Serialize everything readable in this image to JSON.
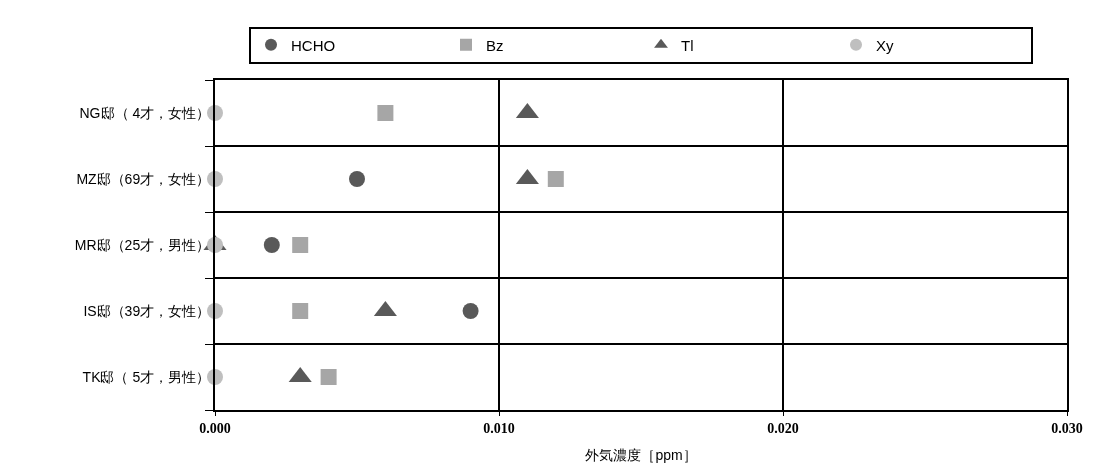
{
  "chart_data": {
    "type": "scatter",
    "orientation": "horizontal",
    "xlabel": "外気濃度［ppm］",
    "categories": [
      "NG邸（ 4才，女性）",
      "MZ邸（69才，女性）",
      "MR邸（25才，男性）",
      "IS邸（39才，女性）",
      "TK邸（ 5才，男性）"
    ],
    "series": [
      {
        "name": "HCHO",
        "color": "#595959",
        "marker": "circle",
        "values": [
          null,
          0.005,
          0.002,
          0.009,
          null
        ]
      },
      {
        "name": "Bz",
        "color": "#a6a6a6",
        "marker": "square",
        "values": [
          0.006,
          0.012,
          0.003,
          0.003,
          0.004
        ]
      },
      {
        "name": "Tl",
        "color": "#595959",
        "marker": "triangle",
        "values": [
          0.011,
          0.011,
          0,
          0.006,
          0.003
        ]
      },
      {
        "name": "Xy",
        "color": "#bfbfbf",
        "marker": "circle",
        "values": [
          0,
          0,
          0,
          0,
          0
        ]
      }
    ],
    "xlim": [
      0,
      0.03
    ],
    "xticks": [
      {
        "value": 0,
        "label": "0.000"
      },
      {
        "value": 0.01,
        "label": "0.010"
      },
      {
        "value": 0.02,
        "label": "0.020"
      },
      {
        "value": 0.03,
        "label": "0.030"
      }
    ],
    "grid": true,
    "legend": "top"
  }
}
